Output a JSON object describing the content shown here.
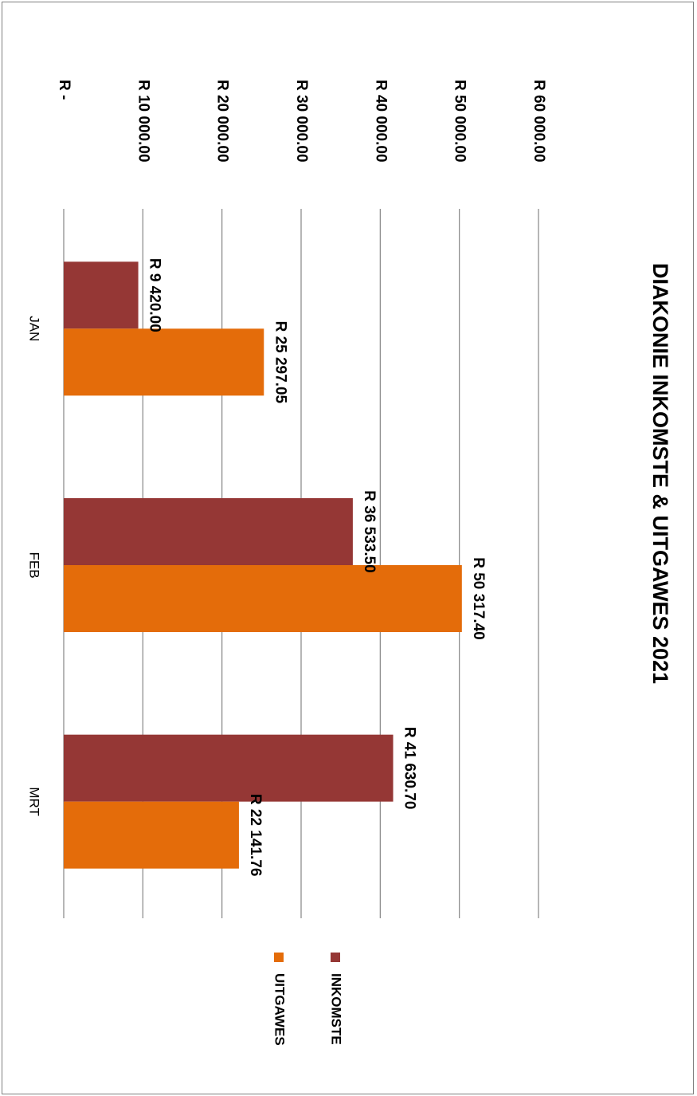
{
  "chart_data": {
    "type": "bar",
    "orientation": "horizontal",
    "title": "DIAKONIE INKOMSTE & UITGAWES 2021",
    "categories": [
      "JAN",
      "FEB",
      "MRT"
    ],
    "series": [
      {
        "name": "INKOMSTE",
        "color": "#953735",
        "values": [
          9420.0,
          36533.5,
          41630.7
        ],
        "labels": [
          "R 9 420.00",
          "R 36 533.50",
          "R 41 630.70"
        ]
      },
      {
        "name": "UITGAWES",
        "color": "#E46C0A",
        "values": [
          25297.05,
          50317.4,
          22141.76
        ],
        "labels": [
          "R 25 297.05",
          "R 50 317.40",
          "R 22 141.76"
        ]
      }
    ],
    "value_axis": {
      "min": 0,
      "max": 60000,
      "step": 10000,
      "tick_labels": [
        "R -",
        "R 10 000.00",
        "R 20 000.00",
        "R 30 000.00",
        "R 40 000.00",
        "R 50 000.00",
        "R 60 000.00"
      ]
    },
    "grid": true,
    "legend_position": "bottom",
    "gridline_color": "#868686"
  }
}
